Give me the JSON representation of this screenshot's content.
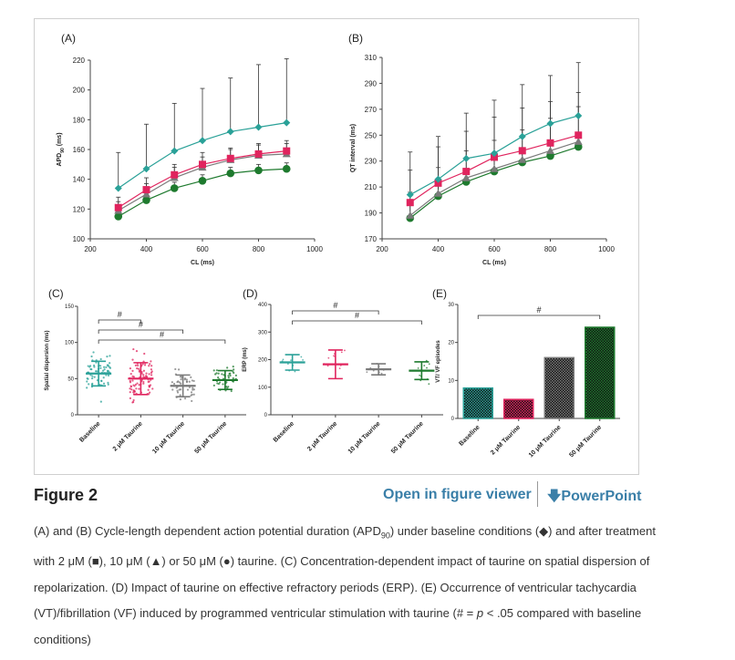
{
  "figure": {
    "title": "Figure 2",
    "open_viewer_label": "Open in figure viewer",
    "powerpoint_label": "PowerPoint",
    "download_icon": "download-arrow-icon",
    "caption_parts": {
      "p1": "(A) and (B) Cycle-length dependent action potential duration (APD",
      "sub": "90",
      "p2": ") under baseline conditions (◆) and after treatment with 2 μM (■), 10 μM (▲) or 50 μM (●) taurine. (C) Concentration-dependent impact of taurine on spatial dispersion of repolarization. (D) Impact of taurine on effective refractory periods (ERP). (E) Occurrence of ventricular tachycardia (VT)/fibrillation (VF) induced by programmed ventricular stimulation with taurine (# = ",
      "p_italic": "p",
      "p3": " < .05 compared with baseline conditions)"
    },
    "colors": {
      "baseline": "#2aa198",
      "t2": "#e0245e",
      "t10": "#7a7a7a",
      "t50": "#1e7a2e",
      "link": "#3a7fa8"
    }
  },
  "chart_data": [
    {
      "panel": "(A)",
      "type": "line",
      "xlabel": "CL (ms)",
      "ylabel_main": "APD",
      "ylabel_sub": "90",
      "ylabel_unit": " (ms)",
      "xlim": [
        200,
        1000
      ],
      "ylim": [
        100,
        220
      ],
      "xticks": [
        200,
        400,
        600,
        800,
        1000
      ],
      "yticks": [
        100,
        120,
        140,
        160,
        180,
        200,
        220
      ],
      "x": [
        300,
        400,
        500,
        600,
        700,
        800,
        900
      ],
      "series": [
        {
          "name": "Baseline",
          "marker": "diamond",
          "color": "#2aa198",
          "values": [
            134,
            147,
            159,
            166,
            172,
            175,
            178
          ],
          "err": [
            24,
            30,
            32,
            35,
            36,
            42,
            43
          ]
        },
        {
          "name": "2 μM Taurine",
          "marker": "square",
          "color": "#e0245e",
          "values": [
            121,
            133,
            143,
            150,
            154,
            157,
            159
          ],
          "err": [
            7,
            8,
            7,
            8,
            7,
            7,
            7
          ]
        },
        {
          "name": "10 μM Taurine",
          "marker": "triangle",
          "color": "#7a7a7a",
          "values": [
            119,
            130,
            141,
            148,
            153,
            156,
            157
          ],
          "err": [
            6,
            7,
            7,
            7,
            7,
            7,
            7
          ]
        },
        {
          "name": "50 μM Taurine",
          "marker": "circle",
          "color": "#1e7a2e",
          "values": [
            115,
            126,
            134,
            139,
            144,
            146,
            147
          ],
          "err": [
            4,
            4,
            4,
            4,
            4,
            4,
            4
          ]
        }
      ]
    },
    {
      "panel": "(B)",
      "type": "line",
      "xlabel": "CL (ms)",
      "ylabel": "QT interval (ms)",
      "xlim": [
        200,
        1000
      ],
      "ylim": [
        170,
        310
      ],
      "xticks": [
        200,
        400,
        600,
        800,
        1000
      ],
      "yticks": [
        170,
        190,
        210,
        230,
        250,
        270,
        290,
        310
      ],
      "x": [
        300,
        400,
        500,
        600,
        700,
        800,
        900
      ],
      "series": [
        {
          "name": "Baseline",
          "marker": "diamond",
          "color": "#2aa198",
          "values": [
            204,
            216,
            232,
            236,
            249,
            259,
            265
          ],
          "err": [
            33,
            33,
            35,
            41,
            40,
            37,
            41
          ]
        },
        {
          "name": "2 μM Taurine",
          "marker": "square",
          "color": "#e0245e",
          "values": [
            198,
            213,
            222,
            233,
            238,
            244,
            250
          ],
          "err": [
            25,
            28,
            31,
            31,
            33,
            32,
            33
          ]
        },
        {
          "name": "10 μM Taurine",
          "marker": "triangle",
          "color": "#7a7a7a",
          "values": [
            188,
            205,
            217,
            224,
            231,
            238,
            245
          ],
          "err": [
            18,
            20,
            21,
            22,
            23,
            25,
            27
          ]
        },
        {
          "name": "50 μM Taurine",
          "marker": "circle",
          "color": "#1e7a2e",
          "values": [
            186,
            203,
            214,
            222,
            229,
            234,
            241
          ],
          "err": [
            10,
            10,
            10,
            10,
            10,
            10,
            10
          ]
        }
      ]
    },
    {
      "panel": "(C)",
      "type": "scatter",
      "ylabel": "Spatial dispersion (ms)",
      "ylim": [
        0,
        150
      ],
      "yticks": [
        0,
        50,
        100,
        150
      ],
      "categories": [
        "Baseline",
        "2 μM Taurine",
        "10 μM Taurine",
        "50 μM Taurine"
      ],
      "colors": [
        "#2aa198",
        "#e0245e",
        "#7a7a7a",
        "#1e7a2e"
      ],
      "mean": [
        57,
        50,
        40,
        48
      ],
      "sd": [
        17,
        22,
        15,
        13
      ],
      "n_points": [
        70,
        90,
        45,
        45
      ],
      "significance": [
        {
          "from": 0,
          "to": 1,
          "label": "#"
        },
        {
          "from": 0,
          "to": 2,
          "label": "#"
        },
        {
          "from": 0,
          "to": 3,
          "label": "#"
        }
      ]
    },
    {
      "panel": "(D)",
      "type": "scatter",
      "ylabel": "ERP (ms)",
      "ylim": [
        0,
        400
      ],
      "yticks": [
        0,
        100,
        200,
        300,
        400
      ],
      "categories": [
        "Baseline",
        "2 μM Taurine",
        "10 μM Taurine",
        "50 μM Taurine"
      ],
      "colors": [
        "#2aa198",
        "#e0245e",
        "#7a7a7a",
        "#1e7a2e"
      ],
      "mean": [
        190,
        183,
        165,
        160
      ],
      "sd": [
        28,
        52,
        20,
        32
      ],
      "n_points": [
        10,
        10,
        8,
        10
      ],
      "significance": [
        {
          "from": 0,
          "to": 2,
          "label": "#"
        },
        {
          "from": 0,
          "to": 3,
          "label": "#"
        }
      ]
    },
    {
      "panel": "(E)",
      "type": "bar",
      "ylabel": "VT/ VF episodes",
      "ylim": [
        0,
        30
      ],
      "yticks": [
        0,
        10,
        20,
        30
      ],
      "categories": [
        "Baseline",
        "2 μM Taurine",
        "10 μM Taurine",
        "50 μM Taurine"
      ],
      "colors": [
        "#2aa198",
        "#e0245e",
        "#7a7a7a",
        "#1e7a2e"
      ],
      "values": [
        8,
        5,
        16,
        24
      ],
      "significance": [
        {
          "from": 0,
          "to": 3,
          "label": "#"
        }
      ]
    }
  ]
}
